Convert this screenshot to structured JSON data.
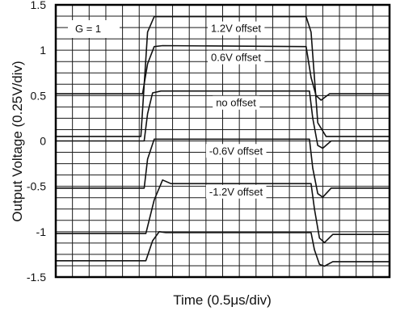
{
  "chart_data": {
    "type": "line",
    "title": "",
    "xlabel": "Time (0.5μs/div)",
    "ylabel": "Output Voltage (0.25V/div)",
    "ylim": [
      -1.5,
      1.5
    ],
    "yticks": [
      "1.5",
      "1",
      "0.5",
      "0",
      "-0.5",
      "-1",
      "-1.5"
    ],
    "grid": true,
    "gain_label": "G = 1",
    "x_divisions": 20,
    "y_divisions": 24,
    "series": [
      {
        "name": "1.2V offset",
        "x": [
          0,
          5.1,
          5.5,
          5.9,
          15.0,
          15.3,
          15.7,
          16.2,
          20
        ],
        "y": [
          0.05,
          0.05,
          1.2,
          1.37,
          1.37,
          1.2,
          0.2,
          0.05,
          0.05
        ]
      },
      {
        "name": "0.6V offset",
        "x": [
          0,
          5.2,
          5.5,
          5.9,
          6.4,
          15.0,
          15.3,
          15.6,
          15.9,
          16.4,
          20
        ],
        "y": [
          0.52,
          0.52,
          0.85,
          1.04,
          1.05,
          1.04,
          0.7,
          0.5,
          0.45,
          0.52,
          0.52
        ]
      },
      {
        "name": "no offset",
        "x": [
          0,
          5.3,
          5.5,
          5.8,
          6.3,
          15.2,
          15.4,
          15.7,
          16.0,
          16.5,
          20
        ],
        "y": [
          0.0,
          0.0,
          0.3,
          0.53,
          0.55,
          0.55,
          0.25,
          -0.05,
          -0.08,
          0.0,
          0.0
        ]
      },
      {
        "name": "-0.6V offset",
        "x": [
          0,
          5.3,
          5.5,
          5.9,
          6.4,
          15.2,
          15.4,
          15.7,
          16.0,
          16.5,
          20
        ],
        "y": [
          -0.52,
          -0.52,
          -0.2,
          0.02,
          0.02,
          0.02,
          -0.3,
          -0.58,
          -0.62,
          -0.52,
          -0.52
        ]
      },
      {
        "name": "-1.2V offset",
        "x": [
          0,
          5.4,
          5.9,
          6.4,
          6.9,
          15.3,
          15.5,
          15.8,
          16.1,
          16.6,
          20
        ],
        "y": [
          -1.02,
          -1.02,
          -0.65,
          -0.43,
          -0.47,
          -0.47,
          -0.75,
          -1.07,
          -1.12,
          -1.03,
          -1.03
        ]
      },
      {
        "name": "",
        "x": [
          0,
          5.4,
          5.8,
          6.2,
          6.6,
          15.3,
          15.5,
          15.8,
          16.1,
          16.6,
          20
        ],
        "y": [
          -1.32,
          -1.32,
          -1.1,
          -1.0,
          -1.01,
          -1.01,
          -1.2,
          -1.36,
          -1.38,
          -1.33,
          -1.33
        ]
      }
    ]
  }
}
